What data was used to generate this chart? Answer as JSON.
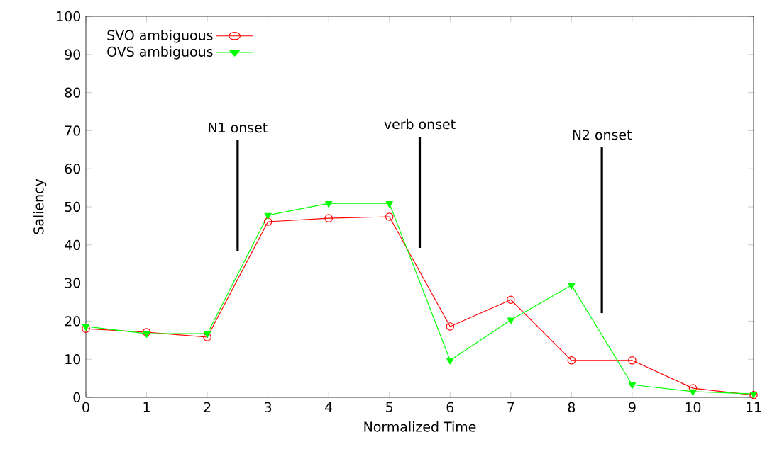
{
  "chart_data": {
    "type": "line",
    "xlabel": "Normalized Time",
    "ylabel": "Saliency",
    "x": [
      0,
      1,
      2,
      3,
      4,
      5,
      6,
      7,
      8,
      9,
      10,
      11
    ],
    "xlim": [
      0,
      11
    ],
    "xticks": [
      0,
      1,
      2,
      3,
      4,
      5,
      6,
      7,
      8,
      9,
      10,
      11
    ],
    "ylim": [
      0,
      100
    ],
    "yticks": [
      0,
      10,
      20,
      30,
      40,
      50,
      60,
      70,
      80,
      90,
      100
    ],
    "grid": false,
    "legend": "top left",
    "series": [
      {
        "name": "SVO ambiguous",
        "color": "#ff0000",
        "marker": "circle",
        "values": [
          18.0,
          17.1,
          15.8,
          46.1,
          47.0,
          47.4,
          18.6,
          25.6,
          9.7,
          9.7,
          2.4,
          0.6
        ]
      },
      {
        "name": "OVS ambiguous",
        "color": "#00ff00",
        "marker": "triangle",
        "values": [
          18.6,
          16.7,
          16.7,
          47.8,
          50.9,
          50.9,
          9.7,
          20.3,
          29.4,
          3.3,
          1.5,
          0.9
        ]
      },
      {
        "color": "#000000",
        "marker": "none",
        "x": [
          2.5,
          2.5
        ],
        "values": [
          38.3,
          67.5
        ]
      },
      {
        "color": "#000000",
        "marker": "none",
        "x": [
          5.5,
          5.5
        ],
        "values": [
          39.2,
          68.4
        ]
      },
      {
        "color": "#000000",
        "marker": "none",
        "x": [
          8.5,
          8.5
        ],
        "values": [
          22.1,
          65.6
        ]
      }
    ],
    "annotations": [
      {
        "text": "N1 onset",
        "x": 2.5,
        "y": 67.5
      },
      {
        "text": "verb onset",
        "x": 5.5,
        "y": 68.4
      },
      {
        "text": "N2 onset",
        "x": 8.5,
        "y": 65.6
      }
    ]
  }
}
